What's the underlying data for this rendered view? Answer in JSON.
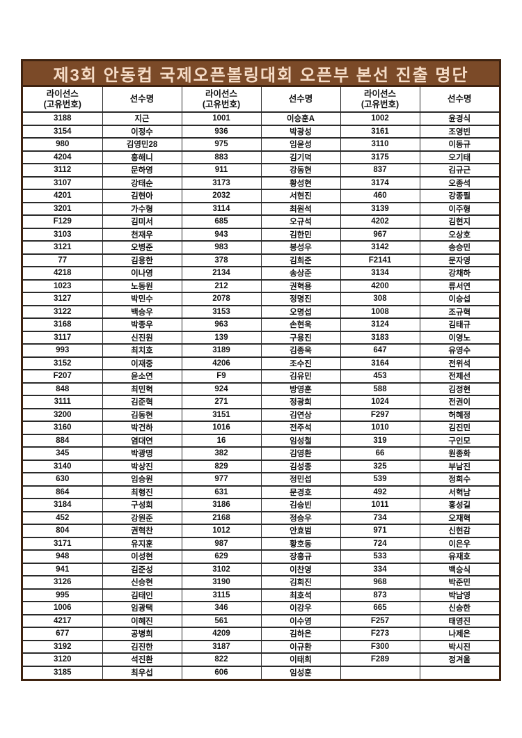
{
  "colors": {
    "title_bg": "#7b4a28",
    "title_text": "#f5dcc7",
    "border_dark": "#3f2310",
    "grid_line": "#2a2a2a"
  },
  "page": {
    "title": "제3회 안동컵 국제오픈볼링대회 오픈부 본선 진출 명단"
  },
  "table": {
    "header": {
      "license_line1": "라이선스",
      "license_line2": "(고유번호)",
      "player": "선수명"
    },
    "rows": [
      [
        "3188",
        "지근",
        "1001",
        "이승훈A",
        "1002",
        "윤경식"
      ],
      [
        "3154",
        "이정수",
        "936",
        "박광성",
        "3161",
        "조영빈"
      ],
      [
        "980",
        "김영민28",
        "975",
        "임윤성",
        "3110",
        "이동규"
      ],
      [
        "4204",
        "홍해니",
        "883",
        "김기덕",
        "3175",
        "오기태"
      ],
      [
        "3112",
        "문하영",
        "911",
        "강동현",
        "837",
        "김규근"
      ],
      [
        "3107",
        "강태순",
        "3173",
        "황성현",
        "3174",
        "오종석"
      ],
      [
        "4201",
        "김현아",
        "2032",
        "서현진",
        "460",
        "강종필"
      ],
      [
        "3201",
        "가수형",
        "3114",
        "최원석",
        "3139",
        "이주형"
      ],
      [
        "F129",
        "김미서",
        "685",
        "오규석",
        "4202",
        "김현지"
      ],
      [
        "3103",
        "천재우",
        "943",
        "김한민",
        "967",
        "오상호"
      ],
      [
        "3121",
        "오병준",
        "983",
        "봉성우",
        "3142",
        "송승민"
      ],
      [
        "77",
        "김용한",
        "378",
        "김희준",
        "F2141",
        "문자영"
      ],
      [
        "4218",
        "이나영",
        "2134",
        "송상준",
        "3134",
        "강채하"
      ],
      [
        "1023",
        "노동원",
        "212",
        "권혁용",
        "4200",
        "류서연"
      ],
      [
        "3127",
        "박민수",
        "2078",
        "정명진",
        "308",
        "이승섭"
      ],
      [
        "3122",
        "백승우",
        "3153",
        "오명섭",
        "1008",
        "조규혁"
      ],
      [
        "3168",
        "박종우",
        "963",
        "손현욱",
        "3124",
        "김태규"
      ],
      [
        "3117",
        "신진원",
        "139",
        "구용진",
        "3183",
        "이영노"
      ],
      [
        "993",
        "최치호",
        "3189",
        "김종욱",
        "647",
        "유영수"
      ],
      [
        "3152",
        "이재중",
        "4206",
        "조수진",
        "3164",
        "전위석"
      ],
      [
        "F207",
        "윤소연",
        "F9",
        "김유민",
        "453",
        "전제선"
      ],
      [
        "848",
        "최민혁",
        "924",
        "방영훈",
        "588",
        "김정현"
      ],
      [
        "3111",
        "김준혁",
        "271",
        "정광희",
        "1024",
        "전권이"
      ],
      [
        "3200",
        "김동현",
        "3151",
        "김연상",
        "F297",
        "허혜정"
      ],
      [
        "3160",
        "박건하",
        "1016",
        "전주석",
        "1010",
        "김진민"
      ],
      [
        "884",
        "염대연",
        "16",
        "임성철",
        "319",
        "구인모"
      ],
      [
        "345",
        "박광명",
        "382",
        "김영환",
        "66",
        "원종화"
      ],
      [
        "3140",
        "박상진",
        "829",
        "김성종",
        "325",
        "부남진"
      ],
      [
        "630",
        "임승원",
        "977",
        "정민섭",
        "539",
        "정희수"
      ],
      [
        "864",
        "최형진",
        "631",
        "문경호",
        "492",
        "서혁남"
      ],
      [
        "3184",
        "구성회",
        "3186",
        "김승빈",
        "1011",
        "홍성길"
      ],
      [
        "452",
        "강원준",
        "2168",
        "정승우",
        "734",
        "오재혁"
      ],
      [
        "804",
        "권혁찬",
        "1012",
        "안효범",
        "971",
        "신현감"
      ],
      [
        "3171",
        "유지훈",
        "987",
        "황호동",
        "724",
        "이은우"
      ],
      [
        "948",
        "이성현",
        "629",
        "장홍규",
        "533",
        "유재호"
      ],
      [
        "941",
        "김준성",
        "3102",
        "이찬영",
        "334",
        "백승식"
      ],
      [
        "3126",
        "신승현",
        "3190",
        "김희진",
        "968",
        "박준민"
      ],
      [
        "995",
        "김태인",
        "3115",
        "최호석",
        "873",
        "박남영"
      ],
      [
        "1006",
        "임광택",
        "346",
        "이강우",
        "665",
        "신승한"
      ],
      [
        "4217",
        "이혜진",
        "561",
        "이수영",
        "F257",
        "태영진"
      ],
      [
        "677",
        "공병희",
        "4209",
        "김하은",
        "F273",
        "나제은"
      ],
      [
        "3192",
        "김진한",
        "3187",
        "이규환",
        "F300",
        "박시진"
      ],
      [
        "3120",
        "석진환",
        "822",
        "이태희",
        "F289",
        "정겨울"
      ],
      [
        "3185",
        "최우섭",
        "606",
        "임성훈",
        "",
        ""
      ]
    ]
  }
}
